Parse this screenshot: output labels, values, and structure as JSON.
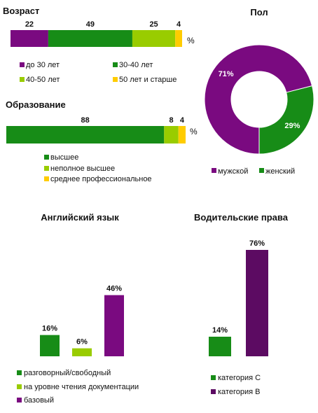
{
  "colors": {
    "purple": "#7a0a80",
    "green": "#178c17",
    "lightgreen": "#99cc00",
    "yellow": "#ffcc00",
    "darkpurple": "#5c0b62"
  },
  "percent_symbol": "%",
  "chart_data": [
    {
      "id": "age",
      "type": "bar",
      "orientation": "horizontal-stacked",
      "title": "Возраст",
      "unit": "%",
      "series": [
        {
          "name": "до 30 лет",
          "value": 22,
          "color": "#7a0a80"
        },
        {
          "name": "30-40  лет",
          "value": 49,
          "color": "#178c17"
        },
        {
          "name": "40-50  лет",
          "value": 25,
          "color": "#99cc00"
        },
        {
          "name": "50 лет и старше",
          "value": 4,
          "color": "#ffcc00"
        }
      ],
      "legend": "bottom"
    },
    {
      "id": "education",
      "type": "bar",
      "orientation": "horizontal-stacked",
      "title": "Образование",
      "unit": "%",
      "series": [
        {
          "name": "высшее",
          "value": 88,
          "color": "#178c17"
        },
        {
          "name": "неполное высшее",
          "value": 8,
          "color": "#99cc00"
        },
        {
          "name": "среднее профессиональное",
          "value": 4,
          "color": "#ffcc00"
        }
      ],
      "legend": "bottom"
    },
    {
      "id": "gender",
      "type": "pie",
      "variant": "doughnut",
      "title": "Пол",
      "slices": [
        {
          "name": "мужской",
          "value": 71,
          "label": "71%",
          "color": "#7a0a80"
        },
        {
          "name": "женский",
          "value": 29,
          "label": "29%",
          "color": "#178c17"
        }
      ],
      "legend": "bottom"
    },
    {
      "id": "english",
      "type": "bar",
      "title": "Английский язык",
      "categories": [
        "разговорный/свободный",
        "на уровне чтения документации",
        "базовый"
      ],
      "values": [
        16,
        6,
        46
      ],
      "labels": [
        "16%",
        "6%",
        "46%"
      ],
      "colors": [
        "#178c17",
        "#99cc00",
        "#7a0a80"
      ],
      "legend": "bottom"
    },
    {
      "id": "license",
      "type": "bar",
      "title": "Водительские права",
      "categories": [
        "категория  С",
        "категория  В"
      ],
      "values": [
        14,
        76
      ],
      "labels": [
        "14%",
        "76%"
      ],
      "colors": [
        "#178c17",
        "#5c0b62"
      ],
      "legend": "bottom"
    }
  ]
}
